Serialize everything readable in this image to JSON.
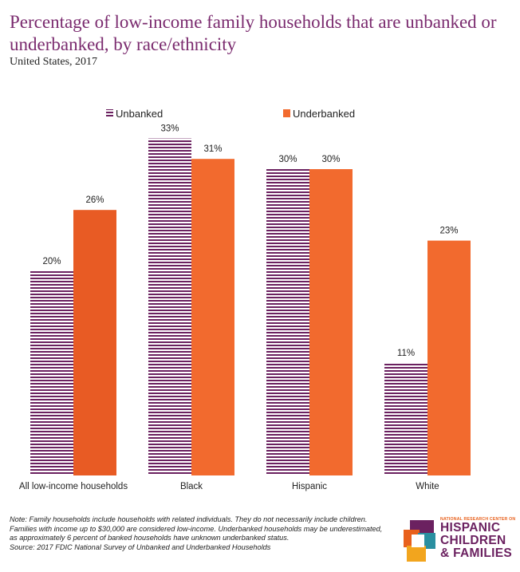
{
  "header": {
    "title": "Percentage of low-income family households that are unbanked or underbanked, by race/ethnicity",
    "subtitle": "United States, 2017"
  },
  "chart_data": {
    "type": "bar",
    "categories": [
      "All low-income households",
      "Black",
      "Hispanic",
      "White"
    ],
    "series": [
      {
        "name": "Unbanked",
        "values": [
          20,
          33,
          30,
          11
        ],
        "labels": [
          "20%",
          "33%",
          "30%",
          "11%"
        ],
        "color": "#6b2160",
        "pattern": "horizontal-stripes"
      },
      {
        "name": "Underbanked",
        "values": [
          26,
          31,
          30,
          23
        ],
        "labels": [
          "26%",
          "31%",
          "30%",
          "23%"
        ],
        "color": "#f26a2e",
        "highlight_color": "#e85b24"
      }
    ],
    "ylim": [
      0,
      35
    ],
    "grid": false,
    "legend_position": "top-center"
  },
  "footer": {
    "note": "Note: Family households include households with related individuals. They do not necessarily include children. Families with income up to $30,000 are considered low-income. Underbanked households may be underestimated, as approximately 6 percent of banked households have unknown underbanked status.",
    "source": "Source:  2017 FDIC National Survey of Unbanked and Underbanked Households"
  },
  "logo": {
    "small_line": "NATIONAL RESEARCH CENTER ON",
    "line1": "HISPANIC",
    "line2": "CHILDREN",
    "line3": "& FAMILIES"
  }
}
